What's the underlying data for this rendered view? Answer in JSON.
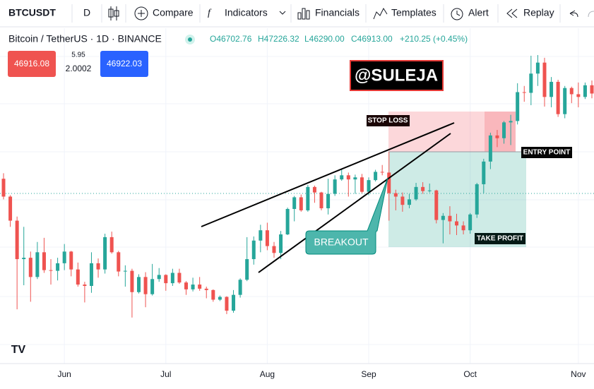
{
  "toolbar": {
    "symbol": "BTCUSDT",
    "interval": "D",
    "compare": "Compare",
    "indicators": "Indicators",
    "financials": "Financials",
    "templates": "Templates",
    "alert": "Alert",
    "replay": "Replay"
  },
  "legend": {
    "title": "Bitcoin / TetherUS · 1D · BINANCE",
    "open": "O46702.76",
    "high": "H47226.32",
    "low": "L46290.00",
    "close": "C46913.00",
    "change": "+210.25 (+0.45%)"
  },
  "trade": {
    "sell": "46916.08",
    "spread_top": "5.95",
    "spread_bottom": "2.0002",
    "buy": "46922.03"
  },
  "chart_data": {
    "type": "candlestick",
    "categories": [
      null,
      null,
      null,
      null,
      null,
      null,
      null,
      null,
      null,
      "Jun",
      null,
      null,
      null,
      null,
      null,
      null,
      null,
      null,
      null,
      null,
      null,
      null,
      null,
      null,
      "Jul",
      null,
      null,
      null,
      null,
      null,
      null,
      null,
      null,
      null,
      null,
      null,
      null,
      null,
      null,
      "Aug",
      null,
      null,
      null,
      null,
      null,
      null,
      null,
      null,
      null,
      null,
      null,
      null,
      null,
      null,
      "Sep",
      null,
      null,
      null,
      null,
      null,
      null,
      null,
      null,
      null,
      null,
      null,
      null,
      null,
      null,
      "Oct",
      null,
      null,
      null,
      null,
      null,
      null,
      null,
      null,
      null,
      null,
      null,
      null,
      null,
      null,
      null,
      "Nov",
      null,
      null
    ],
    "open": [
      49000,
      46400,
      42900,
      37300,
      37500,
      34700,
      38300,
      35700,
      35600,
      36700,
      38400,
      35800,
      33600,
      33400,
      36700,
      35800,
      40500,
      38300,
      35500,
      35600,
      32500,
      34700,
      32200,
      34400,
      35000,
      33800,
      35300,
      33900,
      32900,
      33600,
      33000,
      32800,
      31400,
      31800,
      29800,
      32100,
      34300,
      37300,
      40000,
      41500,
      39200,
      38200,
      40900,
      44600,
      46300,
      44400,
      47800,
      47000,
      44700,
      46800,
      48900,
      49500,
      48900,
      49200,
      47100,
      48800,
      50000,
      49900,
      46900,
      46400,
      45200,
      46000,
      47800,
      47200,
      47300,
      43000,
      43600,
      42800,
      42200,
      41500,
      43800,
      48200,
      51500,
      55300,
      54900,
      57200,
      57400,
      61600,
      61500,
      64300,
      65900,
      60900,
      63100,
      58400,
      62200,
      61300,
      60900,
      62600
    ],
    "high": [
      49800,
      46600,
      43500,
      42000,
      38400,
      39800,
      40400,
      37300,
      37500,
      39500,
      38500,
      36800,
      34000,
      38300,
      37400,
      41000,
      41300,
      38500,
      36400,
      35900,
      35100,
      35400,
      36600,
      36000,
      35100,
      35900,
      35900,
      34100,
      34600,
      34700,
      33300,
      32900,
      32000,
      31900,
      32800,
      34500,
      40500,
      40600,
      42300,
      42600,
      39800,
      41400,
      44800,
      46500,
      46700,
      48100,
      48000,
      47100,
      49000,
      49500,
      50500,
      49900,
      49600,
      49700,
      49200,
      50300,
      51000,
      52900,
      47400,
      47000,
      46800,
      48400,
      48500,
      48300,
      47400,
      44000,
      45000,
      43900,
      42800,
      44000,
      48400,
      51900,
      55700,
      56100,
      57400,
      58300,
      62900,
      62500,
      66900,
      67000,
      66600,
      63800,
      63400,
      62500,
      62400,
      63000,
      63000,
      63300
    ],
    "low": [
      46000,
      42000,
      30000,
      33500,
      31100,
      34400,
      35300,
      33600,
      34200,
      35700,
      34800,
      33300,
      31000,
      32400,
      34600,
      35200,
      38100,
      34800,
      33300,
      28800,
      32300,
      30300,
      32000,
      34000,
      32700,
      33400,
      33700,
      32100,
      32600,
      32700,
      31600,
      31100,
      31200,
      29300,
      29500,
      31700,
      34100,
      36500,
      38300,
      38600,
      37500,
      37300,
      40800,
      42800,
      44200,
      44200,
      45500,
      44400,
      43800,
      46500,
      48700,
      46400,
      46800,
      46900,
      46600,
      48600,
      49500,
      42900,
      44400,
      44200,
      44700,
      45800,
      46800,
      47000,
      42500,
      39600,
      40900,
      40800,
      40900,
      41000,
      43300,
      46900,
      50400,
      53600,
      54100,
      53900,
      56900,
      60200,
      59700,
      62500,
      59500,
      59400,
      58000,
      57800,
      60000,
      59400,
      60600,
      60700
    ],
    "close": [
      46400,
      42900,
      37300,
      37500,
      34700,
      38300,
      35700,
      35600,
      36700,
      38400,
      35800,
      33600,
      33400,
      36700,
      35800,
      40500,
      38300,
      35500,
      35600,
      32500,
      34700,
      32200,
      34400,
      35000,
      33800,
      35300,
      33900,
      32900,
      33600,
      33000,
      32800,
      31400,
      31800,
      29800,
      32100,
      34300,
      37300,
      40000,
      41500,
      39200,
      38200,
      40900,
      44600,
      46300,
      44400,
      47800,
      47000,
      44700,
      46800,
      48900,
      49500,
      48900,
      49200,
      47100,
      48800,
      50000,
      49900,
      46900,
      46400,
      45200,
      46000,
      47800,
      47200,
      47300,
      43000,
      43600,
      42800,
      42200,
      41500,
      43800,
      48200,
      51500,
      55300,
      54900,
      57200,
      57400,
      61600,
      61500,
      64300,
      65900,
      60900,
      63100,
      58400,
      62200,
      61300,
      60900,
      62600,
      61400
    ],
    "up_color": "#26a69a",
    "down_color": "#ef5350",
    "ylim": [
      22100,
      70900
    ],
    "annotations": {
      "watermark": "@SULEJA",
      "stop_loss": "STOP LOSS",
      "entry_point": "ENTRY POINT",
      "take_profit": "TAKE PROFIT",
      "breakout": "BREAKOUT"
    }
  }
}
